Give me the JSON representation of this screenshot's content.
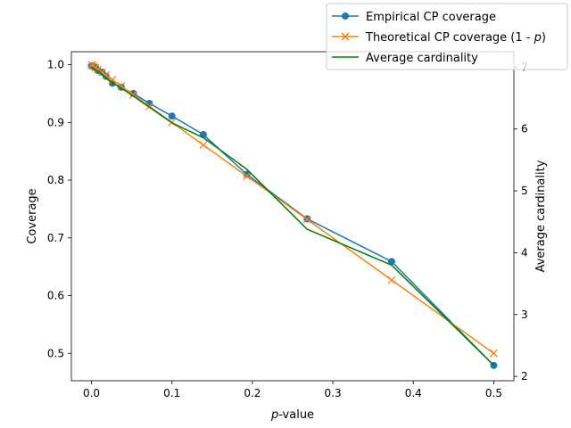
{
  "chart_data": {
    "type": "line",
    "xlabel_var": "p",
    "xlabel_rest": "-value",
    "ylabel_left": "Coverage",
    "ylabel_right": "Average cardinality",
    "xlim": [
      -0.025,
      0.525
    ],
    "ylim_left": [
      0.4525,
      1.0225
    ],
    "ylim_right": [
      1.93,
      7.25
    ],
    "x_ticks": [
      "0.0",
      "0.1",
      "0.2",
      "0.3",
      "0.4",
      "0.5"
    ],
    "y_ticks_left": [
      "0.5",
      "0.6",
      "0.7",
      "0.8",
      "0.9",
      "1.0"
    ],
    "y_ticks_right": [
      "2",
      "3",
      "4",
      "5",
      "6",
      "7"
    ],
    "grid": false,
    "legend_position": "top-right",
    "series": [
      {
        "name": "Empirical CP coverage",
        "axis": "left",
        "color": "#1f77b4",
        "marker": "circle",
        "x": [
          0.0,
          0.002,
          0.005,
          0.008,
          0.013,
          0.018,
          0.026,
          0.037,
          0.052,
          0.072,
          0.1,
          0.139,
          0.193,
          0.268,
          0.373,
          0.5
        ],
        "y": [
          0.998,
          0.997,
          0.995,
          0.99,
          0.987,
          0.98,
          0.968,
          0.961,
          0.95,
          0.933,
          0.911,
          0.879,
          0.81,
          0.733,
          0.659,
          0.479
        ]
      },
      {
        "name": "Theoretical CP coverage (1 - p)",
        "name_prefix": "Theoretical CP coverage (1 - ",
        "name_var": "p",
        "name_suffix": ")",
        "axis": "left",
        "color": "#ff7f0e",
        "marker": "x",
        "x": [
          0.0,
          0.002,
          0.005,
          0.008,
          0.013,
          0.018,
          0.026,
          0.037,
          0.052,
          0.072,
          0.1,
          0.139,
          0.193,
          0.268,
          0.373,
          0.5
        ],
        "y": [
          1.0,
          0.998,
          0.995,
          0.992,
          0.987,
          0.982,
          0.974,
          0.963,
          0.948,
          0.928,
          0.9,
          0.861,
          0.807,
          0.732,
          0.627,
          0.5
        ]
      },
      {
        "name": "Average cardinality",
        "axis": "right",
        "color": "#008000",
        "marker": "none",
        "x": [
          0.0,
          0.01,
          0.02,
          0.05,
          0.1,
          0.139,
          0.193,
          0.268,
          0.373,
          0.5
        ],
        "y": [
          7.0,
          6.92,
          6.8,
          6.55,
          6.1,
          5.86,
          5.35,
          4.38,
          3.8,
          2.18
        ]
      }
    ]
  }
}
